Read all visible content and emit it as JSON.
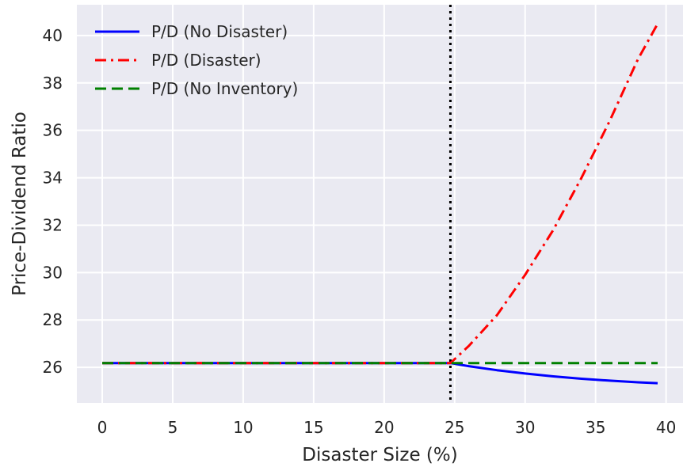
{
  "chart_data": {
    "type": "line",
    "title": "",
    "xlabel": "Disaster Size (%)",
    "ylabel": "Price-Dividend Ratio",
    "xlim": [
      -1.8,
      41.2
    ],
    "ylim": [
      24.5,
      41.3
    ],
    "xticks": [
      0,
      5,
      10,
      15,
      20,
      25,
      30,
      35,
      40
    ],
    "yticks": [
      26,
      28,
      30,
      32,
      34,
      36,
      38,
      40
    ],
    "grid": true,
    "legend_position": "top-left",
    "vline": {
      "x": 24.7,
      "color": "#000000",
      "style": "dotted"
    },
    "series": [
      {
        "name": "P/D (No Disaster)",
        "color": "#0000ff",
        "style": "solid",
        "x": [
          0,
          5,
          10,
          15,
          20,
          24.7,
          26,
          28,
          30,
          32,
          34,
          36,
          38,
          39.4
        ],
        "y": [
          26.18,
          26.18,
          26.18,
          26.18,
          26.18,
          26.18,
          26.05,
          25.88,
          25.74,
          25.62,
          25.52,
          25.44,
          25.37,
          25.33
        ]
      },
      {
        "name": "P/D (Disaster)",
        "color": "#ff0000",
        "style": "dashdot",
        "x": [
          0,
          5,
          10,
          15,
          20,
          24.7,
          26,
          28,
          30,
          32,
          34,
          36,
          38,
          39.4
        ],
        "y": [
          26.18,
          26.18,
          26.18,
          26.18,
          26.18,
          26.18,
          26.9,
          28.2,
          29.9,
          31.8,
          34.0,
          36.4,
          39.0,
          40.5
        ]
      },
      {
        "name": "P/D (No Inventory)",
        "color": "#008000",
        "style": "dashed",
        "x": [
          0,
          39.4
        ],
        "y": [
          26.18,
          26.18
        ]
      }
    ]
  }
}
